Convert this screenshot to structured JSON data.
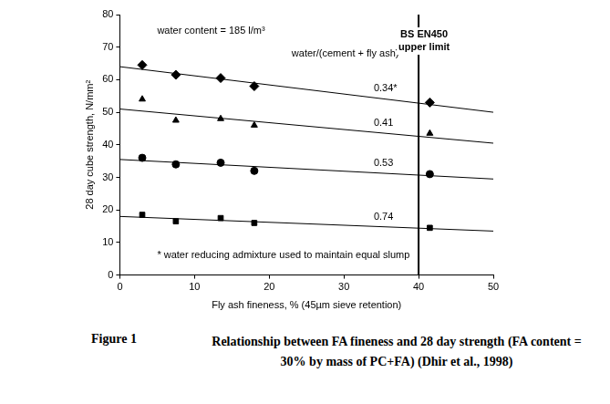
{
  "chart_data": {
    "type": "scatter",
    "x_label": "Fly ash fineness, % (45µm sieve retention)",
    "y_label": "28 day cube strength, N/mm²",
    "xlim": [
      0,
      50
    ],
    "xticks": [
      0,
      10,
      20,
      30,
      40,
      50
    ],
    "ylim": [
      0,
      80
    ],
    "yticks": [
      0,
      10,
      20,
      30,
      40,
      50,
      60,
      70,
      80
    ],
    "grid": false,
    "annotations": {
      "water_content": "water content = 185 l/m³",
      "series_heading": "water/(cement + fly ash)",
      "footnote": "* water reducing admixture used to maintain equal slump"
    },
    "reference_line": {
      "x": 40,
      "label": [
        "BS EN450",
        "upper limit"
      ]
    },
    "series": [
      {
        "name": "0.34*",
        "color": "#000000",
        "marker": "diamond",
        "x": [
          3,
          7.5,
          13.5,
          18,
          41.5
        ],
        "values": [
          64.5,
          61.5,
          60.5,
          58,
          53
        ],
        "trend_line": {
          "x": [
            0,
            50
          ],
          "values": [
            64,
            50
          ]
        }
      },
      {
        "name": "0.41",
        "color": "#000000",
        "marker": "triangle",
        "x": [
          3,
          7.5,
          13.5,
          18,
          41.5
        ],
        "values": [
          54,
          47.5,
          48,
          46,
          43.5
        ],
        "trend_line": {
          "x": [
            0,
            50
          ],
          "values": [
            51,
            40.5
          ]
        }
      },
      {
        "name": "0.53",
        "color": "#000000",
        "marker": "circle",
        "x": [
          3,
          7.5,
          13.5,
          18,
          41.5
        ],
        "values": [
          36,
          34,
          34.5,
          32,
          31
        ],
        "trend_line": {
          "x": [
            0,
            50
          ],
          "values": [
            35.5,
            29.5
          ]
        }
      },
      {
        "name": "0.74",
        "color": "#000000",
        "marker": "square",
        "x": [
          3,
          7.5,
          13.5,
          18,
          41.5
        ],
        "values": [
          18.5,
          16.5,
          17.5,
          16,
          14.5
        ],
        "trend_line": {
          "x": [
            0,
            50
          ],
          "values": [
            18,
            13.5
          ]
        }
      }
    ],
    "caption": {
      "number": "Figure 1",
      "text": "Relationship between FA fineness and 28 day strength (FA content = 30% by mass of PC+FA) (Dhir et al., 1998)"
    }
  }
}
